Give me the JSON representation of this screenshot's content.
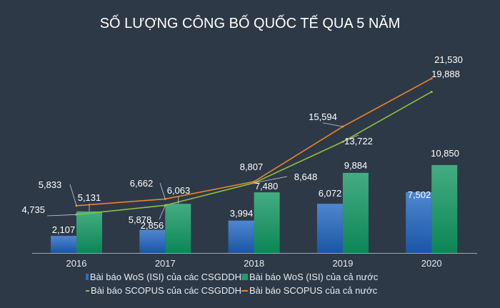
{
  "chart_data": {
    "type": "bar+line",
    "title": "SỐ LƯỢNG CÔNG BỐ QUỐC TẾ QUA 5 NĂM",
    "categories": [
      "2016",
      "2017",
      "2018",
      "2019",
      "2020"
    ],
    "series": [
      {
        "name": "Bài báo WoS (ISI) của các CSGDDH",
        "type": "bar",
        "color": "#2f6cbf",
        "values": [
          2107,
          2856,
          3994,
          6072,
          7502
        ],
        "labels": [
          "2,107",
          "2,856",
          "3,994",
          "6,072",
          "7,502"
        ]
      },
      {
        "name": "Bài báo WoS (ISI) của cả nước",
        "type": "bar",
        "color": "#1f9a6a",
        "values": [
          5131,
          6063,
          7480,
          9884,
          10850
        ],
        "labels": [
          "5,131",
          "6,063",
          "7,480",
          "9,884",
          "10,850"
        ]
      },
      {
        "name": "Bài báo SCOPUS của các CSGDDH",
        "type": "line",
        "color": "#8cbf3f",
        "values": [
          4735,
          5878,
          8648,
          13722,
          19888
        ],
        "labels": [
          "4,735",
          "5,878",
          "8,648",
          "13,722",
          "19,888"
        ]
      },
      {
        "name": "Bài báo SCOPUS của cả nước",
        "type": "line",
        "color": "#e8852a",
        "values": [
          5833,
          6662,
          8807,
          15594,
          21530
        ],
        "labels": [
          "5,833",
          "6,662",
          "8,807",
          "15,594",
          "21,530"
        ]
      }
    ],
    "ylim": [
      0,
      23000
    ],
    "grid": false,
    "legend": "bottom"
  }
}
